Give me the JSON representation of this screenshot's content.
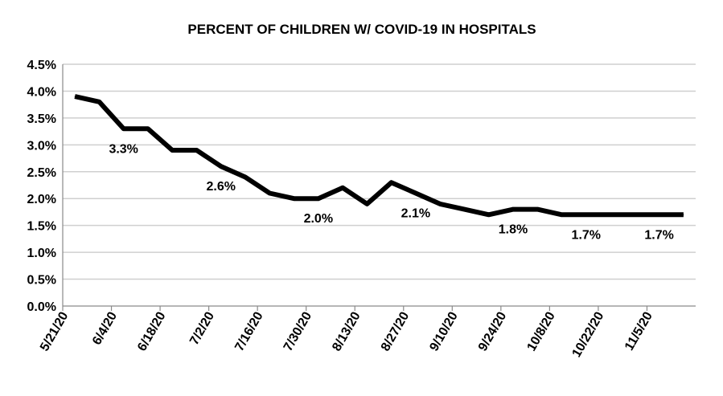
{
  "chart_data": {
    "type": "line",
    "title": "PERCENT OF CHILDREN W/ COVID-19 IN HOSPITALS",
    "xlabel": "",
    "ylabel": "",
    "ylim": [
      0,
      4.5
    ],
    "y_tick_values": [
      0,
      0.5,
      1,
      1.5,
      2,
      2.5,
      3,
      3.5,
      4,
      4.5
    ],
    "y_tick_labels": [
      "0.0%",
      "0.5%",
      "1.0%",
      "1.5%",
      "2.0%",
      "2.5%",
      "3.0%",
      "3.5%",
      "4.0%",
      "4.5%"
    ],
    "x": [
      "5/21/20",
      "5/28/20",
      "6/4/20",
      "6/11/20",
      "6/18/20",
      "6/25/20",
      "7/2/20",
      "7/9/20",
      "7/16/20",
      "7/23/20",
      "7/30/20",
      "8/6/20",
      "8/13/20",
      "8/20/20",
      "8/27/20",
      "9/3/20",
      "9/10/20",
      "9/17/20",
      "9/24/20",
      "10/1/20",
      "10/8/20",
      "10/15/20",
      "10/22/20",
      "10/29/20",
      "11/5/20",
      "11/12/20"
    ],
    "x_tick_labels": [
      "5/21/20",
      "6/4/20",
      "6/18/20",
      "7/2/20",
      "7/16/20",
      "7/30/20",
      "8/13/20",
      "8/27/20",
      "9/10/20",
      "9/24/20",
      "10/8/20",
      "10/22/20",
      "11/5/20"
    ],
    "grid": true,
    "legend": "none",
    "color": "#000000",
    "series": [
      {
        "values": [
          3.9,
          3.8,
          3.3,
          3.3,
          2.9,
          2.9,
          2.6,
          2.4,
          2.1,
          2.0,
          2.0,
          2.2,
          1.9,
          2.3,
          2.1,
          1.9,
          1.8,
          1.7,
          1.8,
          1.8,
          1.7,
          1.7,
          1.7,
          1.7,
          1.7,
          1.7
        ]
      }
    ],
    "data_labels": [
      {
        "index": 2,
        "text": "3.3%"
      },
      {
        "index": 6,
        "text": "2.6%"
      },
      {
        "index": 10,
        "text": "2.0%"
      },
      {
        "index": 14,
        "text": "2.1%"
      },
      {
        "index": 18,
        "text": "1.8%"
      },
      {
        "index": 21,
        "text": "1.7%"
      },
      {
        "index": 24,
        "text": "1.7%"
      }
    ]
  }
}
